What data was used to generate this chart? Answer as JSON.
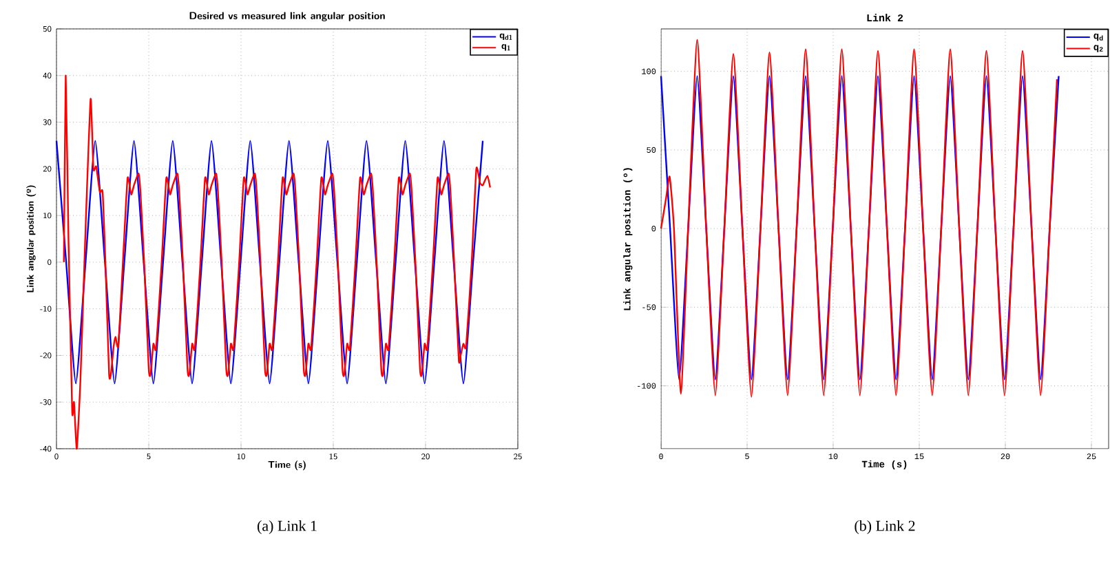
{
  "chart_data": [
    {
      "type": "line",
      "title": "Desired vs measured link  angular position",
      "xlabel": "Time (s)",
      "ylabel": "Link angular position (º)",
      "xlim": [
        0,
        25
      ],
      "ylim": [
        -40,
        50
      ],
      "xticks": [
        0,
        5,
        10,
        15,
        20,
        25
      ],
      "yticks": [
        -40,
        -30,
        -20,
        -10,
        0,
        10,
        20,
        30,
        40,
        50
      ],
      "grid": true,
      "legend": "top right",
      "annotations": [
        "(a) Link 1"
      ],
      "series": [
        {
          "name": "q$_{d1}$",
          "color": "#0000ff",
          "x": [
            0,
            0.525,
            1.05,
            1.575,
            2.1,
            2.625,
            3.15,
            3.675,
            4.2,
            4.725,
            5.25,
            5.775,
            6.3,
            6.825,
            7.35,
            7.875,
            8.4,
            8.925,
            9.45,
            9.975,
            10.5,
            11.025,
            11.55,
            12.075,
            12.6,
            13.125,
            13.65,
            14.175,
            14.7,
            15.225,
            15.75,
            16.275,
            16.8,
            17.325,
            17.85,
            18.375,
            18.9,
            19.425,
            19.95,
            20.475,
            21.0,
            21.525,
            22.05,
            22.575,
            23.1
          ],
          "values": [
            26,
            0,
            -26,
            0,
            26,
            0,
            -26,
            0,
            26,
            0,
            -26,
            0,
            26,
            0,
            -26,
            0,
            26,
            0,
            -26,
            0,
            26,
            0,
            -26,
            0,
            26,
            0,
            -26,
            0,
            26,
            0,
            -26,
            0,
            26,
            0,
            -26,
            0,
            26,
            0,
            -26,
            0,
            26,
            0,
            -26,
            0,
            26
          ]
        },
        {
          "name": "q$_{1}$",
          "color": "#ff0000",
          "x": [
            0.4,
            0.5,
            0.65,
            0.85,
            0.95,
            1.1,
            1.3,
            1.6,
            1.85,
            2.0,
            2.15,
            2.35,
            2.5,
            2.65,
            2.85,
            2.95,
            3.1,
            3.2,
            3.35,
            3.6,
            3.85,
            4.05,
            4.2,
            4.45,
            4.55,
            4.75,
            5.0,
            5.1,
            5.25,
            5.4,
            5.7,
            5.95,
            6.15,
            6.3,
            6.55,
            6.65,
            6.85,
            7.1,
            7.2,
            7.35,
            7.5,
            7.8,
            8.05,
            8.25,
            8.4,
            8.65,
            8.75,
            8.95,
            9.2,
            9.3,
            9.45,
            9.6,
            9.9,
            10.15,
            10.35,
            10.5,
            10.75,
            10.85,
            11.05,
            11.3,
            11.4,
            11.55,
            11.7,
            12.0,
            12.25,
            12.45,
            12.6,
            12.85,
            12.95,
            13.15,
            13.4,
            13.5,
            13.65,
            13.8,
            14.1,
            14.35,
            14.55,
            14.7,
            14.95,
            15.05,
            15.25,
            15.5,
            15.6,
            15.75,
            15.9,
            16.2,
            16.45,
            16.65,
            16.8,
            17.05,
            17.15,
            17.35,
            17.6,
            17.7,
            17.85,
            18.0,
            18.3,
            18.55,
            18.75,
            18.9,
            19.15,
            19.25,
            19.45,
            19.7,
            19.8,
            19.95,
            20.1,
            20.4,
            20.65,
            20.85,
            21.0,
            21.25,
            21.35,
            21.55,
            21.8,
            21.9,
            22.05,
            22.2,
            22.5,
            22.75,
            22.95,
            23.1,
            23.35,
            23.5
          ],
          "values": [
            0,
            40,
            5,
            -32,
            -30,
            -40,
            -25,
            10,
            35,
            20,
            20.5,
            15,
            15,
            0,
            -24,
            -24,
            -18,
            -16,
            -18,
            0,
            18,
            14.5,
            16.5,
            19,
            15,
            0,
            -23,
            -24,
            -17.5,
            -18.5,
            0,
            18,
            14.5,
            16.5,
            19,
            15,
            0,
            -23,
            -24,
            -17.5,
            -18.5,
            0,
            18,
            14.5,
            16.5,
            19,
            15,
            0,
            -23,
            -24,
            -17.5,
            -18.5,
            0,
            18,
            14.5,
            16.5,
            19,
            15,
            0,
            -23,
            -24,
            -17.5,
            -18.5,
            0,
            18,
            14.5,
            16.5,
            19,
            15,
            0,
            -23,
            -24,
            -17.5,
            -18.5,
            0,
            18,
            14.5,
            16.5,
            19,
            15,
            0,
            -23,
            -24,
            -17.5,
            -18.5,
            0,
            18,
            14.5,
            16.5,
            19,
            15,
            0,
            -23,
            -24,
            -17.5,
            -18.5,
            0,
            18,
            14.5,
            16.5,
            19,
            15,
            0,
            -23,
            -24,
            -17.5,
            -18.5,
            0,
            18,
            14.5,
            16.5,
            19,
            15,
            0,
            -21,
            -20,
            -17.5,
            -18,
            0,
            20,
            17,
            16.5,
            18.5,
            16
          ]
        }
      ]
    },
    {
      "type": "line",
      "title": "Link 2",
      "xlabel": "Time (s)",
      "ylabel": "Link angular position (º)",
      "xlim": [
        0,
        26
      ],
      "ylim": [
        -140,
        127
      ],
      "xticks": [
        0,
        5,
        10,
        15,
        20,
        25
      ],
      "yticks": [
        -100,
        -50,
        0,
        50,
        100
      ],
      "grid": true,
      "legend": "top right",
      "annotations": [
        "(b) Link 2"
      ],
      "series": [
        {
          "name": "q$_{d}$",
          "color": "#0000ff",
          "x": [
            0,
            0.525,
            1.05,
            1.575,
            2.1,
            2.625,
            3.15,
            3.675,
            4.2,
            4.725,
            5.25,
            5.775,
            6.3,
            6.825,
            7.35,
            7.875,
            8.4,
            8.925,
            9.45,
            9.975,
            10.5,
            11.025,
            11.55,
            12.075,
            12.6,
            13.125,
            13.65,
            14.175,
            14.7,
            15.225,
            15.75,
            16.275,
            16.8,
            17.325,
            17.85,
            18.375,
            18.9,
            19.425,
            19.95,
            20.475,
            21.0,
            21.525,
            22.05,
            22.575,
            23.1
          ],
          "values": [
            97,
            0,
            -96,
            0,
            97,
            0,
            -96,
            0,
            97,
            0,
            -96,
            0,
            97,
            0,
            -96,
            0,
            97,
            0,
            -96,
            0,
            97,
            0,
            -96,
            0,
            97,
            0,
            -96,
            0,
            97,
            0,
            -96,
            0,
            97,
            0,
            -96,
            0,
            97,
            0,
            -96,
            0,
            97,
            0,
            -96,
            0,
            97
          ]
        },
        {
          "name": "q$_{2}$",
          "color": "#ff0000",
          "x": [
            0,
            0.3,
            0.5,
            0.75,
            1.15,
            1.575,
            2.1,
            2.625,
            3.15,
            3.675,
            4.2,
            4.725,
            5.25,
            5.775,
            6.3,
            6.825,
            7.35,
            7.875,
            8.4,
            8.925,
            9.45,
            9.975,
            10.5,
            11.025,
            11.55,
            12.075,
            12.6,
            13.125,
            13.65,
            14.175,
            14.7,
            15.225,
            15.75,
            16.275,
            16.8,
            17.325,
            17.85,
            18.375,
            18.9,
            19.425,
            19.95,
            20.475,
            21.0,
            21.525,
            22.05,
            22.575,
            23.0
          ],
          "values": [
            0,
            20,
            33,
            0,
            -105,
            0,
            120,
            0,
            -106,
            0,
            111,
            0,
            -107,
            0,
            112,
            0,
            -106,
            0,
            114,
            0,
            -106,
            0,
            114,
            0,
            -106,
            0,
            113,
            0,
            -106,
            0,
            114,
            0,
            -106,
            0,
            114,
            0,
            -106,
            0,
            113,
            0,
            -106,
            0,
            113,
            0,
            -106,
            0,
            95
          ]
        }
      ]
    }
  ]
}
